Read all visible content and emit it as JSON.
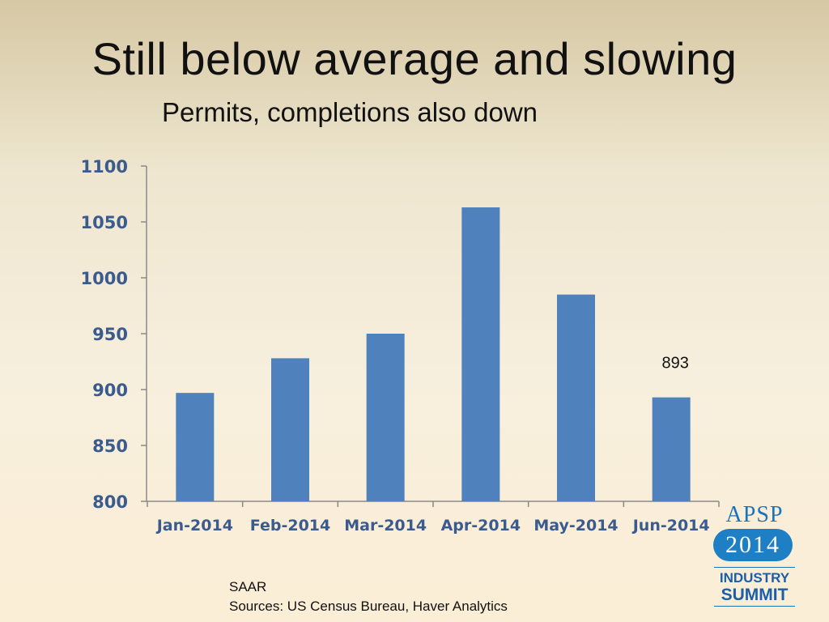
{
  "slide": {
    "title": "Still below average and slowing",
    "subtitle": "Permits, completions also down",
    "note_1": "SAAR",
    "note_2": "Sources: US Census Bureau, Haver Analytics"
  },
  "logo": {
    "brand": "APSP",
    "year": "2014",
    "line1": "INDUSTRY",
    "line2": "SUMMIT",
    "color": "#1a73b8"
  },
  "chart_data": {
    "type": "bar",
    "categories": [
      "Jan-2014",
      "Feb-2014",
      "Mar-2014",
      "Apr-2014",
      "May-2014",
      "Jun-2014"
    ],
    "values": [
      897,
      928,
      950,
      1063,
      985,
      893
    ],
    "ylim": [
      800,
      1100
    ],
    "yticks": [
      800,
      850,
      900,
      950,
      1000,
      1050,
      1100
    ],
    "data_labels": [
      {
        "category": "Jun-2014",
        "text": "893"
      }
    ],
    "grid": false,
    "bar_color": "#4f81bd"
  }
}
